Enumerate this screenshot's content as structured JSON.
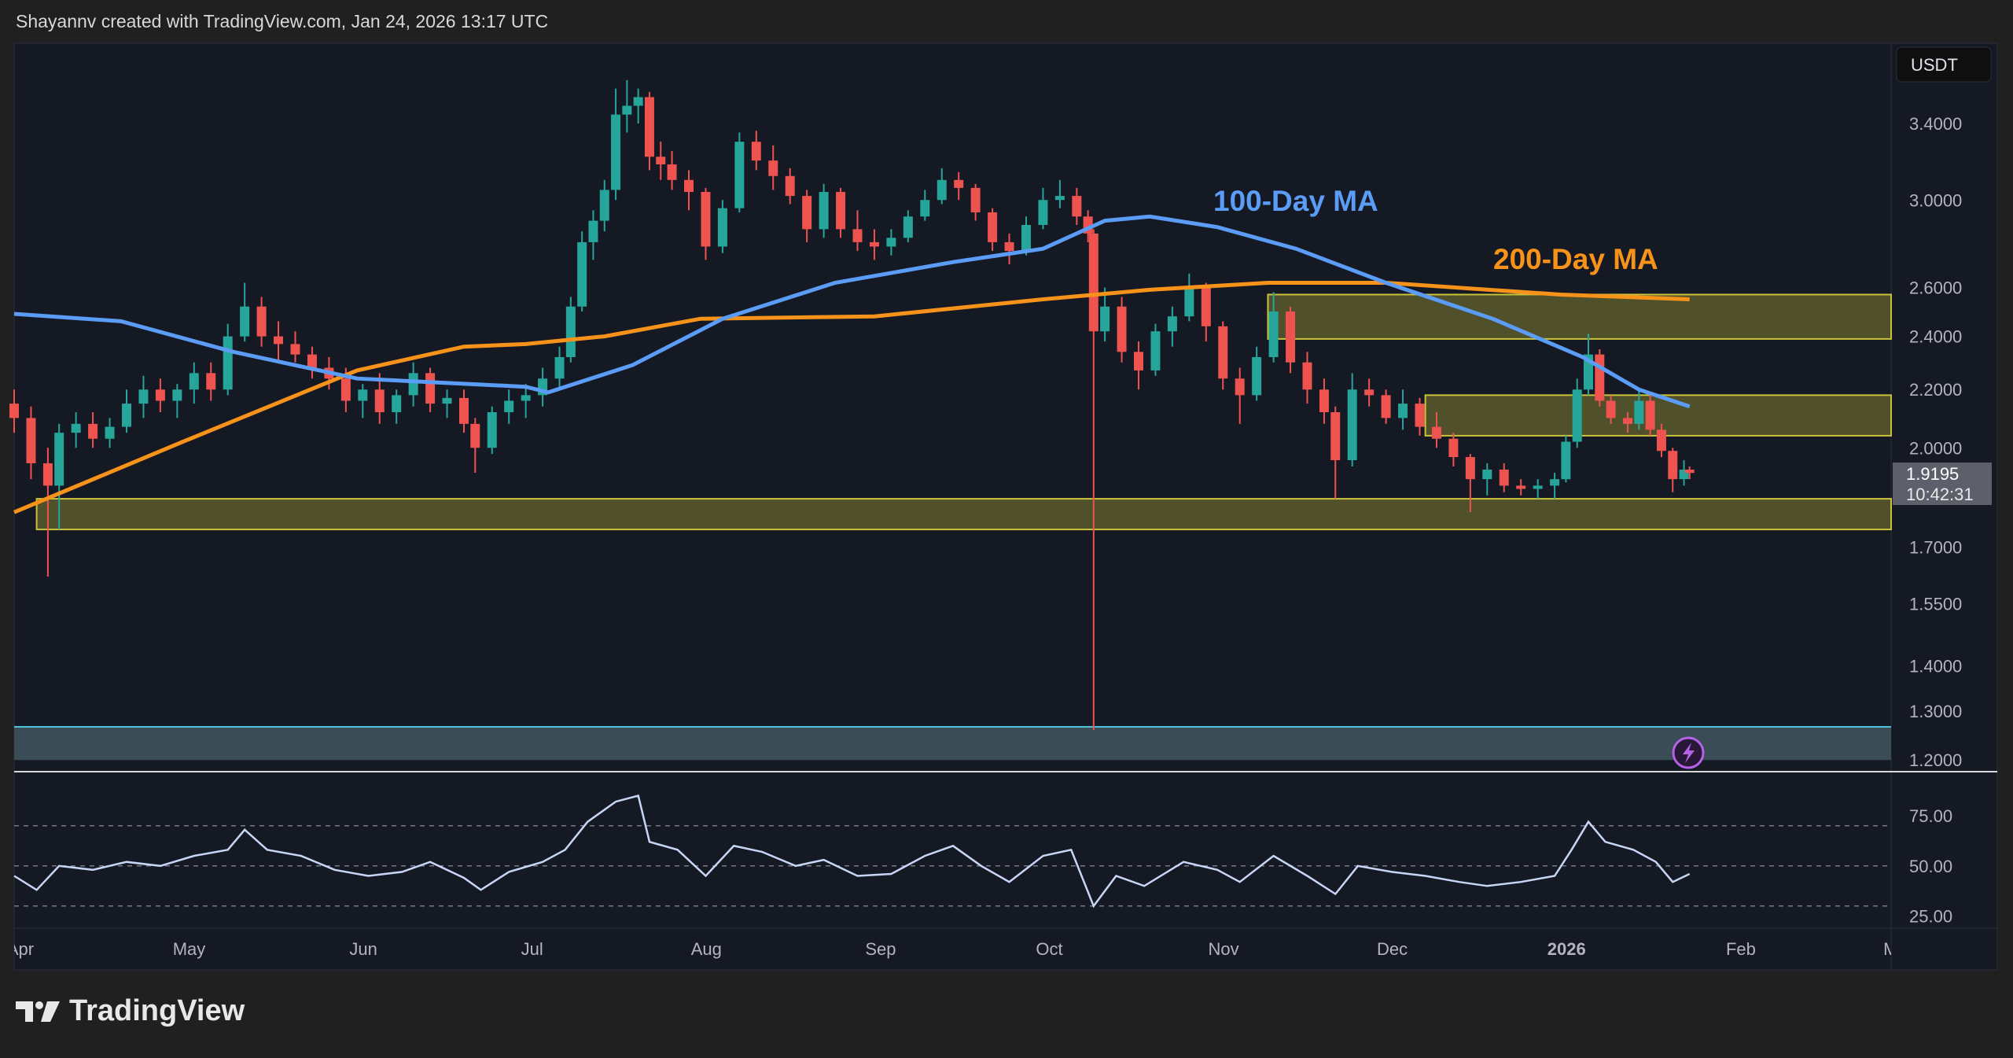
{
  "header": {
    "credit": "Shayannv created with TradingView.com, Jan 24, 2026 13:17 UTC"
  },
  "footer": {
    "logo_text": "TradingView"
  },
  "colors": {
    "up": "#26a69a",
    "down": "#ef5350",
    "ma100": "#5b9cf6",
    "ma200": "#f7931a",
    "zone": "#c9c23a",
    "rsi": "#c7d6f5",
    "background": "#151924"
  },
  "chart_data": {
    "type": "candlestick",
    "currency_label": "USDT",
    "y_scale": "log",
    "ylim": [
      1.2,
      3.75
    ],
    "y_ticks": [
      "3.4000",
      "3.0000",
      "2.6000",
      "2.4000",
      "2.2000",
      "2.0000",
      "1.7000",
      "1.5500",
      "1.4000",
      "1.3000",
      "1.2000"
    ],
    "x_ticks": [
      {
        "label": "Apr",
        "date": "2025-04-01"
      },
      {
        "label": "May",
        "date": "2025-05-01"
      },
      {
        "label": "Jun",
        "date": "2025-06-01"
      },
      {
        "label": "Jul",
        "date": "2025-07-01"
      },
      {
        "label": "Aug",
        "date": "2025-08-01"
      },
      {
        "label": "Sep",
        "date": "2025-09-01"
      },
      {
        "label": "Oct",
        "date": "2025-10-01"
      },
      {
        "label": "Nov",
        "date": "2025-11-01"
      },
      {
        "label": "Dec",
        "date": "2025-12-01"
      },
      {
        "label": "2026",
        "date": "2026-01-01",
        "bold": true
      },
      {
        "label": "Feb",
        "date": "2026-02-01"
      },
      {
        "label": "Mar",
        "date": "2026-03-01"
      }
    ],
    "last_price": "1.9195",
    "countdown": "10:42:31",
    "candles_columns": [
      "date",
      "open",
      "high",
      "low",
      "close"
    ],
    "candles": [
      [
        "2025-04-01",
        2.15,
        2.2,
        2.05,
        2.1
      ],
      [
        "2025-04-04",
        2.1,
        2.14,
        1.9,
        1.95
      ],
      [
        "2025-04-07",
        1.95,
        2.0,
        1.62,
        1.88
      ],
      [
        "2025-04-09",
        1.88,
        2.08,
        1.75,
        2.05
      ],
      [
        "2025-04-12",
        2.05,
        2.12,
        2.0,
        2.08
      ],
      [
        "2025-04-15",
        2.08,
        2.12,
        2.0,
        2.03
      ],
      [
        "2025-04-18",
        2.03,
        2.1,
        2.0,
        2.07
      ],
      [
        "2025-04-21",
        2.07,
        2.2,
        2.05,
        2.15
      ],
      [
        "2025-04-24",
        2.15,
        2.25,
        2.1,
        2.2
      ],
      [
        "2025-04-27",
        2.2,
        2.24,
        2.12,
        2.16
      ],
      [
        "2025-04-30",
        2.16,
        2.22,
        2.1,
        2.2
      ],
      [
        "2025-05-03",
        2.2,
        2.3,
        2.15,
        2.26
      ],
      [
        "2025-05-06",
        2.26,
        2.3,
        2.16,
        2.2
      ],
      [
        "2025-05-09",
        2.2,
        2.45,
        2.18,
        2.4
      ],
      [
        "2025-05-12",
        2.4,
        2.62,
        2.38,
        2.52
      ],
      [
        "2025-05-15",
        2.52,
        2.56,
        2.36,
        2.4
      ],
      [
        "2025-05-18",
        2.4,
        2.46,
        2.3,
        2.37
      ],
      [
        "2025-05-21",
        2.37,
        2.42,
        2.3,
        2.33
      ],
      [
        "2025-05-24",
        2.33,
        2.36,
        2.24,
        2.28
      ],
      [
        "2025-05-27",
        2.28,
        2.32,
        2.2,
        2.24
      ],
      [
        "2025-05-30",
        2.24,
        2.28,
        2.12,
        2.16
      ],
      [
        "2025-06-02",
        2.16,
        2.22,
        2.1,
        2.2
      ],
      [
        "2025-06-05",
        2.2,
        2.26,
        2.08,
        2.12
      ],
      [
        "2025-06-08",
        2.12,
        2.2,
        2.08,
        2.18
      ],
      [
        "2025-06-11",
        2.18,
        2.3,
        2.14,
        2.26
      ],
      [
        "2025-06-14",
        2.26,
        2.28,
        2.12,
        2.15
      ],
      [
        "2025-06-17",
        2.15,
        2.2,
        2.1,
        2.17
      ],
      [
        "2025-06-20",
        2.17,
        2.2,
        2.05,
        2.08
      ],
      [
        "2025-06-22",
        2.08,
        2.1,
        1.92,
        2.0
      ],
      [
        "2025-06-25",
        2.0,
        2.14,
        1.98,
        2.12
      ],
      [
        "2025-06-28",
        2.12,
        2.2,
        2.08,
        2.16
      ],
      [
        "2025-07-01",
        2.16,
        2.22,
        2.1,
        2.18
      ],
      [
        "2025-07-04",
        2.18,
        2.28,
        2.14,
        2.24
      ],
      [
        "2025-07-07",
        2.24,
        2.36,
        2.2,
        2.32
      ],
      [
        "2025-07-09",
        2.32,
        2.56,
        2.3,
        2.52
      ],
      [
        "2025-07-11",
        2.52,
        2.85,
        2.5,
        2.8
      ],
      [
        "2025-07-13",
        2.8,
        2.95,
        2.72,
        2.9
      ],
      [
        "2025-07-15",
        2.9,
        3.1,
        2.85,
        3.05
      ],
      [
        "2025-07-17",
        3.05,
        3.6,
        3.0,
        3.45
      ],
      [
        "2025-07-19",
        3.45,
        3.65,
        3.35,
        3.5
      ],
      [
        "2025-07-21",
        3.5,
        3.6,
        3.4,
        3.55
      ],
      [
        "2025-07-23",
        3.55,
        3.58,
        3.15,
        3.22
      ],
      [
        "2025-07-25",
        3.22,
        3.3,
        3.1,
        3.18
      ],
      [
        "2025-07-27",
        3.18,
        3.25,
        3.05,
        3.1
      ],
      [
        "2025-07-30",
        3.1,
        3.15,
        2.95,
        3.04
      ],
      [
        "2025-08-02",
        3.04,
        3.06,
        2.72,
        2.78
      ],
      [
        "2025-08-05",
        2.78,
        3.0,
        2.75,
        2.96
      ],
      [
        "2025-08-08",
        2.96,
        3.35,
        2.94,
        3.3
      ],
      [
        "2025-08-11",
        3.3,
        3.36,
        3.15,
        3.2
      ],
      [
        "2025-08-14",
        3.2,
        3.28,
        3.05,
        3.12
      ],
      [
        "2025-08-17",
        3.12,
        3.16,
        2.98,
        3.02
      ],
      [
        "2025-08-20",
        3.02,
        3.05,
        2.8,
        2.86
      ],
      [
        "2025-08-23",
        2.86,
        3.08,
        2.82,
        3.04
      ],
      [
        "2025-08-26",
        3.04,
        3.06,
        2.82,
        2.86
      ],
      [
        "2025-08-29",
        2.86,
        2.95,
        2.76,
        2.8
      ],
      [
        "2025-09-01",
        2.8,
        2.86,
        2.72,
        2.78
      ],
      [
        "2025-09-04",
        2.78,
        2.86,
        2.74,
        2.82
      ],
      [
        "2025-09-07",
        2.82,
        2.95,
        2.8,
        2.92
      ],
      [
        "2025-09-10",
        2.92,
        3.05,
        2.9,
        3.0
      ],
      [
        "2025-09-13",
        3.0,
        3.16,
        2.98,
        3.1
      ],
      [
        "2025-09-16",
        3.1,
        3.14,
        3.0,
        3.06
      ],
      [
        "2025-09-19",
        3.06,
        3.08,
        2.9,
        2.94
      ],
      [
        "2025-09-22",
        2.94,
        2.96,
        2.76,
        2.8
      ],
      [
        "2025-09-25",
        2.8,
        2.84,
        2.7,
        2.76
      ],
      [
        "2025-09-28",
        2.76,
        2.92,
        2.74,
        2.88
      ],
      [
        "2025-10-01",
        2.88,
        3.06,
        2.86,
        3.0
      ],
      [
        "2025-10-04",
        3.0,
        3.1,
        2.96,
        3.02
      ],
      [
        "2025-10-07",
        3.02,
        3.06,
        2.88,
        2.92
      ],
      [
        "2025-10-09",
        2.92,
        2.95,
        2.8,
        2.84
      ],
      [
        "2025-10-10",
        2.84,
        2.86,
        1.26,
        2.42
      ],
      [
        "2025-10-12",
        2.42,
        2.6,
        2.38,
        2.52
      ],
      [
        "2025-10-15",
        2.52,
        2.56,
        2.3,
        2.34
      ],
      [
        "2025-10-18",
        2.34,
        2.38,
        2.2,
        2.27
      ],
      [
        "2025-10-21",
        2.27,
        2.45,
        2.25,
        2.42
      ],
      [
        "2025-10-24",
        2.42,
        2.52,
        2.36,
        2.48
      ],
      [
        "2025-10-27",
        2.48,
        2.66,
        2.46,
        2.6
      ],
      [
        "2025-10-30",
        2.6,
        2.62,
        2.38,
        2.44
      ],
      [
        "2025-11-02",
        2.44,
        2.46,
        2.2,
        2.24
      ],
      [
        "2025-11-05",
        2.24,
        2.28,
        2.08,
        2.18
      ],
      [
        "2025-11-08",
        2.18,
        2.36,
        2.16,
        2.32
      ],
      [
        "2025-11-11",
        2.32,
        2.58,
        2.3,
        2.5
      ],
      [
        "2025-11-14",
        2.5,
        2.52,
        2.26,
        2.3
      ],
      [
        "2025-11-17",
        2.3,
        2.34,
        2.15,
        2.2
      ],
      [
        "2025-11-20",
        2.2,
        2.24,
        2.08,
        2.12
      ],
      [
        "2025-11-22",
        2.12,
        2.14,
        1.84,
        1.96
      ],
      [
        "2025-11-25",
        1.96,
        2.26,
        1.94,
        2.2
      ],
      [
        "2025-11-28",
        2.2,
        2.24,
        2.14,
        2.18
      ],
      [
        "2025-12-01",
        2.18,
        2.2,
        2.08,
        2.1
      ],
      [
        "2025-12-04",
        2.1,
        2.2,
        2.06,
        2.15
      ],
      [
        "2025-12-07",
        2.15,
        2.17,
        2.04,
        2.07
      ],
      [
        "2025-12-10",
        2.07,
        2.12,
        2.0,
        2.03
      ],
      [
        "2025-12-13",
        2.03,
        2.05,
        1.94,
        1.97
      ],
      [
        "2025-12-16",
        1.97,
        1.98,
        1.8,
        1.9
      ],
      [
        "2025-12-19",
        1.9,
        1.95,
        1.85,
        1.93
      ],
      [
        "2025-12-22",
        1.93,
        1.95,
        1.86,
        1.88
      ],
      [
        "2025-12-25",
        1.88,
        1.9,
        1.85,
        1.87
      ],
      [
        "2025-12-28",
        1.87,
        1.9,
        1.84,
        1.88
      ],
      [
        "2025-12-31",
        1.88,
        1.92,
        1.84,
        1.9
      ],
      [
        "2026-01-02",
        1.9,
        2.04,
        1.89,
        2.02
      ],
      [
        "2026-01-04",
        2.02,
        2.24,
        2.0,
        2.2
      ],
      [
        "2026-01-06",
        2.2,
        2.41,
        2.18,
        2.33
      ],
      [
        "2026-01-08",
        2.33,
        2.35,
        2.14,
        2.16
      ],
      [
        "2026-01-10",
        2.16,
        2.18,
        2.08,
        2.1
      ],
      [
        "2026-01-13",
        2.1,
        2.12,
        2.05,
        2.08
      ],
      [
        "2026-01-15",
        2.08,
        2.2,
        2.06,
        2.16
      ],
      [
        "2026-01-17",
        2.16,
        2.18,
        2.04,
        2.06
      ],
      [
        "2026-01-19",
        2.06,
        2.08,
        1.97,
        1.99
      ],
      [
        "2026-01-21",
        1.99,
        2.0,
        1.86,
        1.9
      ],
      [
        "2026-01-23",
        1.9,
        1.96,
        1.88,
        1.93
      ],
      [
        "2026-01-24",
        1.93,
        1.94,
        1.9,
        1.9195
      ]
    ],
    "ma100": {
      "label": "100-Day MA",
      "points": [
        [
          "2025-04-01",
          2.49
        ],
        [
          "2025-04-20",
          2.46
        ],
        [
          "2025-05-10",
          2.34
        ],
        [
          "2025-06-01",
          2.24
        ],
        [
          "2025-07-01",
          2.21
        ],
        [
          "2025-07-05",
          2.19
        ],
        [
          "2025-07-20",
          2.29
        ],
        [
          "2025-08-05",
          2.47
        ],
        [
          "2025-08-25",
          2.62
        ],
        [
          "2025-09-15",
          2.71
        ],
        [
          "2025-10-01",
          2.77
        ],
        [
          "2025-10-12",
          2.9
        ],
        [
          "2025-10-20",
          2.92
        ],
        [
          "2025-11-01",
          2.87
        ],
        [
          "2025-11-15",
          2.77
        ],
        [
          "2025-12-01",
          2.62
        ],
        [
          "2025-12-20",
          2.47
        ],
        [
          "2026-01-05",
          2.32
        ],
        [
          "2026-01-15",
          2.2
        ],
        [
          "2026-01-24",
          2.14
        ]
      ]
    },
    "ma200": {
      "label": "200-Day MA",
      "points": [
        [
          "2025-04-01",
          1.8
        ],
        [
          "2025-05-01",
          2.02
        ],
        [
          "2025-06-01",
          2.27
        ],
        [
          "2025-06-20",
          2.36
        ],
        [
          "2025-07-01",
          2.37
        ],
        [
          "2025-07-15",
          2.4
        ],
        [
          "2025-08-01",
          2.47
        ],
        [
          "2025-09-01",
          2.48
        ],
        [
          "2025-10-01",
          2.55
        ],
        [
          "2025-10-20",
          2.59
        ],
        [
          "2025-11-10",
          2.62
        ],
        [
          "2025-12-01",
          2.62
        ],
        [
          "2026-01-01",
          2.57
        ],
        [
          "2026-01-24",
          2.55
        ]
      ]
    },
    "zones": [
      {
        "from": "2025-11-10",
        "low": 2.39,
        "high": 2.57,
        "color": "#c9c23a"
      },
      {
        "from": "2025-12-08",
        "low": 2.04,
        "high": 2.18,
        "color": "#c9c23a"
      },
      {
        "from": "2025-04-05",
        "low": 1.75,
        "high": 1.84,
        "color": "#c9c23a"
      },
      {
        "from": "2025-04-01",
        "low": 1.2,
        "high": 1.267,
        "color": "#4fc3d9"
      }
    ],
    "rsi": {
      "ylim": [
        20,
        95
      ],
      "y_ticks": [
        "75.00",
        "50.00",
        "25.00"
      ],
      "bands": [
        70,
        50,
        30
      ],
      "points": [
        [
          "2025-04-01",
          45
        ],
        [
          "2025-04-05",
          38
        ],
        [
          "2025-04-09",
          50
        ],
        [
          "2025-04-15",
          48
        ],
        [
          "2025-04-21",
          52
        ],
        [
          "2025-04-27",
          50
        ],
        [
          "2025-05-03",
          55
        ],
        [
          "2025-05-09",
          58
        ],
        [
          "2025-05-12",
          68
        ],
        [
          "2025-05-16",
          58
        ],
        [
          "2025-05-22",
          55
        ],
        [
          "2025-05-28",
          48
        ],
        [
          "2025-06-03",
          45
        ],
        [
          "2025-06-09",
          47
        ],
        [
          "2025-06-14",
          52
        ],
        [
          "2025-06-20",
          44
        ],
        [
          "2025-06-23",
          38
        ],
        [
          "2025-06-28",
          47
        ],
        [
          "2025-07-04",
          52
        ],
        [
          "2025-07-08",
          58
        ],
        [
          "2025-07-12",
          72
        ],
        [
          "2025-07-17",
          82
        ],
        [
          "2025-07-21",
          85
        ],
        [
          "2025-07-23",
          62
        ],
        [
          "2025-07-28",
          58
        ],
        [
          "2025-08-02",
          45
        ],
        [
          "2025-08-07",
          60
        ],
        [
          "2025-08-12",
          57
        ],
        [
          "2025-08-18",
          50
        ],
        [
          "2025-08-23",
          53
        ],
        [
          "2025-08-29",
          45
        ],
        [
          "2025-09-04",
          46
        ],
        [
          "2025-09-10",
          55
        ],
        [
          "2025-09-15",
          60
        ],
        [
          "2025-09-20",
          50
        ],
        [
          "2025-09-25",
          42
        ],
        [
          "2025-10-01",
          55
        ],
        [
          "2025-10-06",
          58
        ],
        [
          "2025-10-10",
          30
        ],
        [
          "2025-10-14",
          45
        ],
        [
          "2025-10-19",
          40
        ],
        [
          "2025-10-26",
          52
        ],
        [
          "2025-11-01",
          48
        ],
        [
          "2025-11-05",
          42
        ],
        [
          "2025-11-11",
          55
        ],
        [
          "2025-11-17",
          45
        ],
        [
          "2025-11-22",
          36
        ],
        [
          "2025-11-26",
          50
        ],
        [
          "2025-12-02",
          47
        ],
        [
          "2025-12-08",
          45
        ],
        [
          "2025-12-14",
          42
        ],
        [
          "2025-12-19",
          40
        ],
        [
          "2025-12-25",
          42
        ],
        [
          "2025-12-31",
          45
        ],
        [
          "2026-01-03",
          58
        ],
        [
          "2026-01-06",
          72
        ],
        [
          "2026-01-09",
          62
        ],
        [
          "2026-01-14",
          58
        ],
        [
          "2026-01-18",
          52
        ],
        [
          "2026-01-21",
          42
        ],
        [
          "2026-01-24",
          46
        ]
      ]
    }
  }
}
